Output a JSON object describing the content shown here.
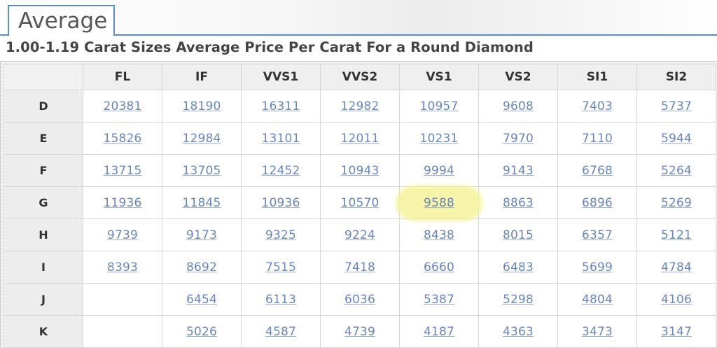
{
  "tab": {
    "label": "Average"
  },
  "heading": "1.00-1.19 Carat Sizes Average Price Per Carat For a Round Diamond",
  "table": {
    "clarity_headers": [
      "FL",
      "IF",
      "VVS1",
      "VVS2",
      "VS1",
      "VS2",
      "SI1",
      "SI2"
    ],
    "rows": [
      {
        "color": "D",
        "prices": [
          "20381",
          "18190",
          "16311",
          "12982",
          "10957",
          "9608",
          "7403",
          "5737"
        ]
      },
      {
        "color": "E",
        "prices": [
          "15826",
          "12984",
          "13101",
          "12011",
          "10231",
          "7970",
          "7110",
          "5944"
        ]
      },
      {
        "color": "F",
        "prices": [
          "13715",
          "13705",
          "12452",
          "10943",
          "9994",
          "9143",
          "6768",
          "5264"
        ]
      },
      {
        "color": "G",
        "prices": [
          "11936",
          "11845",
          "10936",
          "10570",
          "9588",
          "8863",
          "6896",
          "5269"
        ]
      },
      {
        "color": "H",
        "prices": [
          "9739",
          "9173",
          "9325",
          "9224",
          "8438",
          "8015",
          "6357",
          "5121"
        ]
      },
      {
        "color": "I",
        "prices": [
          "8393",
          "8692",
          "7515",
          "7418",
          "6660",
          "6483",
          "5699",
          "4784"
        ]
      },
      {
        "color": "J",
        "prices": [
          "",
          "6454",
          "6113",
          "6036",
          "5387",
          "5298",
          "4804",
          "4106"
        ]
      },
      {
        "color": "K",
        "prices": [
          "",
          "5026",
          "4587",
          "4739",
          "4187",
          "4363",
          "3473",
          "3147"
        ]
      }
    ],
    "highlighted_cell": {
      "color": "G",
      "clarity": "VS1",
      "value": "9588",
      "highlight_color": "#f4f39a"
    }
  },
  "colors": {
    "tab_border": "#5b8ec5",
    "link": "#6a86b8",
    "header_bg": "#efefef",
    "grid": "#d6d6d6"
  }
}
